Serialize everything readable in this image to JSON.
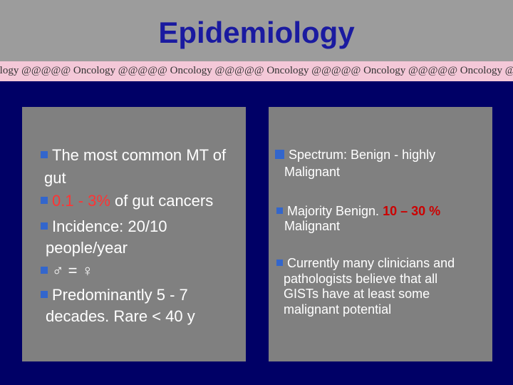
{
  "slide": {
    "title": "Epidemiology",
    "banner_text": "ncology @@@@@ Oncology @@@@@ Oncology @@@@@ Oncology @@@@@ Oncology @@@@@ Oncology @@@@@Oncology @@@@@"
  },
  "left_panel": {
    "b1_line1": "The most common MT of",
    "b1_line2": "gut",
    "b2_value": "0.1 - 3%",
    "b2_rest": " of gut cancers",
    "b3_line1": "Incidence: 20/10",
    "b3_line2": "people/year",
    "b4_text": "♂ = ♀",
    "b5_line1": "Predominantly 5 -  7",
    "b5_line2": "decades. Rare < 40 y"
  },
  "right_panel": {
    "b1_line1": "Spectrum: Benign - highly",
    "b1_line2": "Malignant",
    "b2_prefix": "Majority Benign. ",
    "b2_value": "10 – 30 %",
    "b2_line2": "Malignant",
    "b3_line1": "Currently many clinicians and",
    "b3_line2": "pathologists believe that all",
    "b3_line3": "GISTs have at least some",
    "b3_line4": "malignant potential"
  },
  "colors": {
    "background": "#000066",
    "header": "#9c9c9c",
    "panel": "#808080",
    "title": "#1a1aa0",
    "bullet": "#3366cc",
    "highlight": "#ff3333"
  }
}
